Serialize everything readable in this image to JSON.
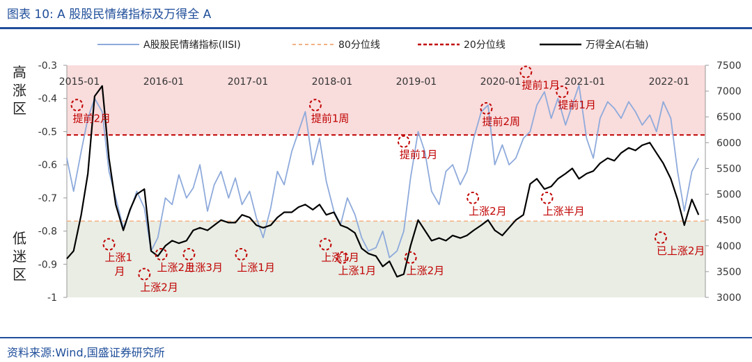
{
  "header": {
    "title": "图表 10:  A 股股民情绪指标及万得全 A"
  },
  "footer": {
    "source": "资料来源:Wind,国盛证券研究所"
  },
  "chart_data": {
    "type": "line",
    "title": "",
    "legend": {
      "placement": "top",
      "items": [
        "A股股民情绪指标(IISI)",
        "80分位线",
        "20分位线",
        "万得全A(右轴)"
      ]
    },
    "zones": {
      "high": "高\n涨\n区",
      "low": "低\n迷\n区"
    },
    "colors": {
      "iisi": "#8eaadb",
      "p80": "#f4b183",
      "p20": "#c00000",
      "wind": "#000000",
      "high_zone": "#f9dcdc",
      "low_zone": "#e9ede4",
      "annotation": "#c00000"
    },
    "y_left": {
      "range": [
        -1,
        -0.3
      ],
      "ticks": [
        "-0.3",
        "-0.4",
        "-0.5",
        "-0.6",
        "-0.7",
        "-0.8",
        "-0.9",
        "-1"
      ]
    },
    "y_right": {
      "range": [
        3000,
        7500
      ],
      "ticks": [
        "7500",
        "7000",
        "6500",
        "6000",
        "5500",
        "5000",
        "4500",
        "4000",
        "3500",
        "3000"
      ]
    },
    "x_ticks": [
      "2015-01",
      "2016-01",
      "2017-01",
      "2018-01",
      "2019-01",
      "2020-01",
      "2021-01",
      "2022-01"
    ],
    "grid": false,
    "thresholds": {
      "p80": -0.77,
      "p20": -0.51
    },
    "series": [
      {
        "name": "A股股民情绪指标(IISI)",
        "axis": "left",
        "x": [
          2015.0,
          2015.08,
          2015.17,
          2015.25,
          2015.33,
          2015.42,
          2015.5,
          2015.58,
          2015.67,
          2015.75,
          2015.83,
          2015.92,
          2016.0,
          2016.08,
          2016.17,
          2016.25,
          2016.33,
          2016.42,
          2016.5,
          2016.58,
          2016.67,
          2016.75,
          2016.83,
          2016.92,
          2017.0,
          2017.08,
          2017.17,
          2017.25,
          2017.33,
          2017.42,
          2017.5,
          2017.58,
          2017.67,
          2017.75,
          2017.83,
          2017.92,
          2018.0,
          2018.08,
          2018.17,
          2018.25,
          2018.33,
          2018.42,
          2018.5,
          2018.58,
          2018.67,
          2018.75,
          2018.83,
          2018.92,
          2019.0,
          2019.08,
          2019.17,
          2019.25,
          2019.33,
          2019.42,
          2019.5,
          2019.58,
          2019.67,
          2019.75,
          2019.83,
          2019.92,
          2020.0,
          2020.08,
          2020.17,
          2020.25,
          2020.33,
          2020.42,
          2020.5,
          2020.58,
          2020.67,
          2020.75,
          2020.83,
          2020.92,
          2021.0,
          2021.08,
          2021.17,
          2021.25,
          2021.33,
          2021.42,
          2021.5,
          2021.58,
          2021.67,
          2021.75,
          2021.83,
          2021.92,
          2022.0,
          2022.08,
          2022.17,
          2022.25,
          2022.33,
          2022.42,
          2022.5
        ],
        "values": [
          -0.58,
          -0.68,
          -0.56,
          -0.46,
          -0.4,
          -0.44,
          -0.62,
          -0.7,
          -0.79,
          -0.74,
          -0.68,
          -0.73,
          -0.86,
          -0.82,
          -0.7,
          -0.72,
          -0.63,
          -0.7,
          -0.67,
          -0.6,
          -0.74,
          -0.66,
          -0.62,
          -0.7,
          -0.64,
          -0.72,
          -0.68,
          -0.76,
          -0.82,
          -0.73,
          -0.62,
          -0.66,
          -0.56,
          -0.5,
          -0.44,
          -0.6,
          -0.52,
          -0.65,
          -0.74,
          -0.78,
          -0.7,
          -0.75,
          -0.82,
          -0.86,
          -0.85,
          -0.8,
          -0.88,
          -0.86,
          -0.8,
          -0.64,
          -0.5,
          -0.56,
          -0.68,
          -0.72,
          -0.62,
          -0.6,
          -0.66,
          -0.62,
          -0.52,
          -0.44,
          -0.42,
          -0.6,
          -0.54,
          -0.6,
          -0.58,
          -0.52,
          -0.5,
          -0.42,
          -0.38,
          -0.46,
          -0.4,
          -0.48,
          -0.42,
          -0.36,
          -0.52,
          -0.58,
          -0.46,
          -0.41,
          -0.43,
          -0.46,
          -0.41,
          -0.44,
          -0.48,
          -0.45,
          -0.5,
          -0.41,
          -0.46,
          -0.62,
          -0.74,
          -0.62,
          -0.58
        ]
      },
      {
        "name": "万得全A(右轴)",
        "axis": "right",
        "x": [
          2015.0,
          2015.08,
          2015.17,
          2015.25,
          2015.33,
          2015.42,
          2015.5,
          2015.58,
          2015.67,
          2015.75,
          2015.83,
          2015.92,
          2016.0,
          2016.08,
          2016.17,
          2016.25,
          2016.33,
          2016.42,
          2016.5,
          2016.58,
          2016.67,
          2016.75,
          2016.83,
          2016.92,
          2017.0,
          2017.08,
          2017.17,
          2017.25,
          2017.33,
          2017.42,
          2017.5,
          2017.58,
          2017.67,
          2017.75,
          2017.83,
          2017.92,
          2018.0,
          2018.08,
          2018.17,
          2018.25,
          2018.33,
          2018.42,
          2018.5,
          2018.58,
          2018.67,
          2018.75,
          2018.83,
          2018.92,
          2019.0,
          2019.08,
          2019.17,
          2019.25,
          2019.33,
          2019.42,
          2019.5,
          2019.58,
          2019.67,
          2019.75,
          2019.83,
          2019.92,
          2020.0,
          2020.08,
          2020.17,
          2020.25,
          2020.33,
          2020.42,
          2020.5,
          2020.58,
          2020.67,
          2020.75,
          2020.83,
          2020.92,
          2021.0,
          2021.08,
          2021.17,
          2021.25,
          2021.33,
          2021.42,
          2021.5,
          2021.58,
          2021.67,
          2021.75,
          2021.83,
          2021.92,
          2022.0,
          2022.08,
          2022.17,
          2022.25,
          2022.33,
          2022.42,
          2022.5
        ],
        "values": [
          3750,
          3900,
          4600,
          5400,
          6900,
          7100,
          5700,
          4800,
          4300,
          4700,
          5000,
          5100,
          3900,
          3800,
          4000,
          4100,
          4050,
          4100,
          4300,
          4350,
          4300,
          4400,
          4500,
          4450,
          4450,
          4600,
          4550,
          4400,
          4350,
          4400,
          4550,
          4650,
          4650,
          4750,
          4800,
          4700,
          4800,
          4600,
          4650,
          4400,
          4350,
          4250,
          3950,
          3850,
          3800,
          3600,
          3700,
          3400,
          3450,
          4000,
          4500,
          4300,
          4100,
          4150,
          4100,
          4200,
          4150,
          4200,
          4300,
          4400,
          4500,
          4300,
          4200,
          4350,
          4500,
          4600,
          5200,
          5300,
          5100,
          5150,
          5300,
          5400,
          5500,
          5300,
          5400,
          5450,
          5600,
          5700,
          5650,
          5800,
          5900,
          5850,
          5950,
          6000,
          5800,
          5600,
          5300,
          4900,
          4400,
          4900,
          4600
        ]
      }
    ],
    "annotations": [
      {
        "text": "提前2月",
        "x": 2015.12,
        "y": -0.42
      },
      {
        "text": "上涨1\n月",
        "x": 2015.5,
        "y": -0.84
      },
      {
        "text": "上涨2月",
        "x": 2015.92,
        "y": -0.93
      },
      {
        "text": "上涨2月",
        "x": 2016.12,
        "y": -0.87
      },
      {
        "text": "上涨3月",
        "x": 2016.45,
        "y": -0.87
      },
      {
        "text": "上涨1月",
        "x": 2017.07,
        "y": -0.87
      },
      {
        "text": "提前1周",
        "x": 2017.95,
        "y": -0.42
      },
      {
        "text": "上涨1月",
        "x": 2018.07,
        "y": -0.84
      },
      {
        "text": "上涨1月",
        "x": 2018.27,
        "y": -0.88
      },
      {
        "text": "提前1月",
        "x": 2019.0,
        "y": -0.53
      },
      {
        "text": "上涨2月",
        "x": 2019.08,
        "y": -0.88
      },
      {
        "text": "上涨2月",
        "x": 2019.82,
        "y": -0.7
      },
      {
        "text": "提前2周",
        "x": 2019.98,
        "y": -0.43
      },
      {
        "text": "提前1月",
        "x": 2020.45,
        "y": -0.32
      },
      {
        "text": "上涨半月",
        "x": 2020.7,
        "y": -0.7
      },
      {
        "text": "提前1月",
        "x": 2020.88,
        "y": -0.38
      },
      {
        "text": "已上涨2月",
        "x": 2022.05,
        "y": -0.82
      }
    ]
  }
}
